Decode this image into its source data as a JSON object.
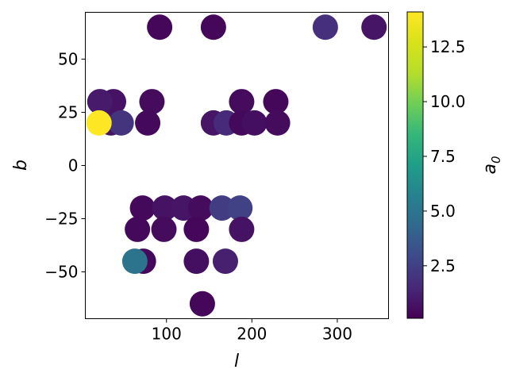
{
  "chart_data": {
    "type": "scatter",
    "xlabel": "l",
    "ylabel": "b",
    "xlim": [
      5,
      360
    ],
    "ylim": [
      -72,
      72
    ],
    "x_ticks": [
      100,
      200,
      300
    ],
    "y_ticks": [
      -50,
      -25,
      0,
      25,
      50
    ],
    "x_tick_labels": [
      "100",
      "200",
      "300"
    ],
    "y_tick_labels": [
      "−50",
      "−25",
      "0",
      "25",
      "50"
    ],
    "colorbar": {
      "label": "a",
      "label_subscript": "0",
      "range": [
        0.1,
        14.1
      ],
      "ticks": [
        2.5,
        5.0,
        7.5,
        10.0,
        12.5
      ],
      "tick_labels": [
        "2.5",
        "5.0",
        "7.5",
        "10.0",
        "12.5"
      ],
      "colormap": "viridis"
    },
    "grid": false,
    "points": [
      {
        "l": 92,
        "b": 65,
        "a0": 0.3
      },
      {
        "l": 155,
        "b": 65,
        "a0": 0.3
      },
      {
        "l": 286,
        "b": 65,
        "a0": 1.8
      },
      {
        "l": 343,
        "b": 65,
        "a0": 0.8
      },
      {
        "l": 38,
        "b": 30,
        "a0": 0.7
      },
      {
        "l": 22,
        "b": 30,
        "a0": 1.0
      },
      {
        "l": 83,
        "b": 30,
        "a0": 0.5
      },
      {
        "l": 188,
        "b": 30,
        "a0": 0.5
      },
      {
        "l": 228,
        "b": 30,
        "a0": 0.3
      },
      {
        "l": 78,
        "b": 20,
        "a0": 0.4
      },
      {
        "l": 35,
        "b": 20,
        "a0": 0.8
      },
      {
        "l": 47,
        "b": 20,
        "a0": 2.0
      },
      {
        "l": 21,
        "b": 20,
        "a0": 14.1
      },
      {
        "l": 155,
        "b": 20,
        "a0": 0.8
      },
      {
        "l": 170,
        "b": 20,
        "a0": 1.6
      },
      {
        "l": 188,
        "b": 20,
        "a0": 0.4
      },
      {
        "l": 203,
        "b": 20,
        "a0": 0.6
      },
      {
        "l": 230,
        "b": 20,
        "a0": 0.5
      },
      {
        "l": 72,
        "b": -20,
        "a0": 0.4
      },
      {
        "l": 98,
        "b": -20,
        "a0": 0.7
      },
      {
        "l": 120,
        "b": -20,
        "a0": 0.8
      },
      {
        "l": 140,
        "b": -20,
        "a0": 0.5
      },
      {
        "l": 165,
        "b": -20,
        "a0": 2.4
      },
      {
        "l": 186,
        "b": -20,
        "a0": 2.6
      },
      {
        "l": 66,
        "b": -30,
        "a0": 0.4
      },
      {
        "l": 97,
        "b": -30,
        "a0": 0.5
      },
      {
        "l": 135,
        "b": -30,
        "a0": 0.3
      },
      {
        "l": 188,
        "b": -30,
        "a0": 0.7
      },
      {
        "l": 73,
        "b": -45,
        "a0": 0.4
      },
      {
        "l": 63,
        "b": -45,
        "a0": 4.9
      },
      {
        "l": 135,
        "b": -45,
        "a0": 0.6
      },
      {
        "l": 169,
        "b": -45,
        "a0": 1.2
      },
      {
        "l": 142,
        "b": -65,
        "a0": 0.3
      }
    ]
  }
}
